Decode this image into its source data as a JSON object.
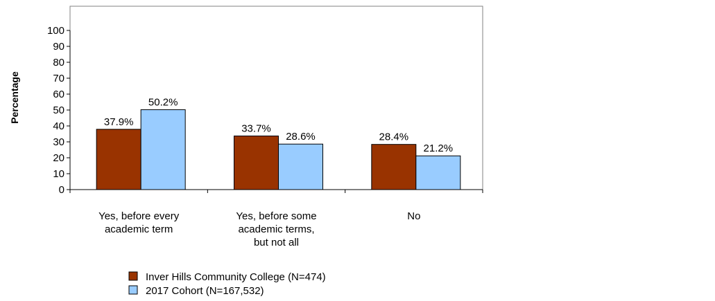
{
  "chart_data": {
    "type": "bar",
    "ylabel": "Percentage",
    "xlabel": "",
    "ylim": [
      0,
      100
    ],
    "yticks": [
      0,
      10,
      20,
      30,
      40,
      50,
      60,
      70,
      80,
      90,
      100
    ],
    "categories": [
      [
        "Yes, before every",
        "academic term"
      ],
      [
        "Yes, before some",
        "academic terms,",
        "but not all"
      ],
      [
        "No"
      ]
    ],
    "series": [
      {
        "name": "Inver Hills Community College (N=474)",
        "color": "#993300",
        "values": [
          37.9,
          33.7,
          28.4
        ],
        "labels": [
          "37.9%",
          "33.7%",
          "28.4%"
        ]
      },
      {
        "name": "2017 Cohort (N=167,532)",
        "color": "#99ccff",
        "values": [
          50.2,
          28.6,
          21.2
        ],
        "labels": [
          "50.2%",
          "28.6%",
          "21.2%"
        ]
      }
    ],
    "grid": false,
    "legend_position": "bottom"
  }
}
